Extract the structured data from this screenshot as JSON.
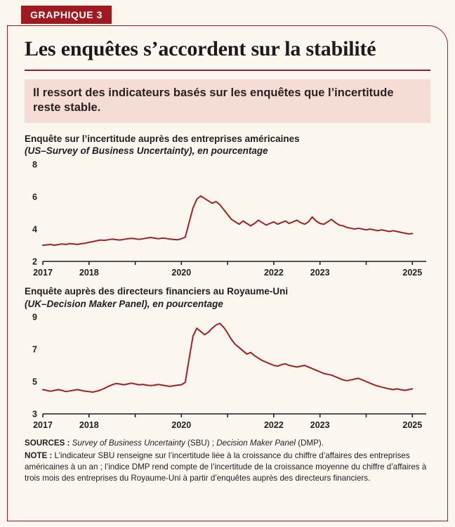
{
  "badge": "GRAPHIQUE 3",
  "title": "Les enquêtes s’accordent sur la stabilité",
  "intro": "Il ressort des indicateurs basés sur les enquêtes que l’incertitude reste stable.",
  "colors": {
    "accent": "#9e1b22",
    "line": "#a32220",
    "intro_background": "#f5dcd5",
    "page_background": "#fbf6ee",
    "text": "#221d1e"
  },
  "chart_data": [
    {
      "type": "line",
      "heading": "Enquête sur l’incertitude auprès des entreprises américaines",
      "subheading": "(US–Survey of Business Uncertainty), en pourcentage",
      "x0": 2017,
      "dx_years": 0.0833333,
      "xlim": [
        2017,
        2025.3
      ],
      "ylim": [
        2,
        8
      ],
      "yticks": [
        2,
        4,
        6,
        8
      ],
      "xtick_marks": [
        2017,
        2018,
        2019,
        2020,
        2021,
        2022,
        2023,
        2024,
        2025
      ],
      "xtick_labels": [
        [
          2017,
          "2017"
        ],
        [
          2018,
          "2018"
        ],
        [
          2020,
          "2020"
        ],
        [
          2022,
          "2022"
        ],
        [
          2023,
          "2023"
        ],
        [
          2025,
          "2025"
        ]
      ],
      "values": [
        3.0,
        3.02,
        3.05,
        3.0,
        3.04,
        3.08,
        3.05,
        3.1,
        3.08,
        3.05,
        3.1,
        3.12,
        3.18,
        3.22,
        3.28,
        3.32,
        3.3,
        3.34,
        3.38,
        3.35,
        3.32,
        3.36,
        3.4,
        3.42,
        3.4,
        3.36,
        3.4,
        3.44,
        3.48,
        3.44,
        3.4,
        3.44,
        3.42,
        3.38,
        3.36,
        3.34,
        3.4,
        3.5,
        4.4,
        5.3,
        5.85,
        6.05,
        5.9,
        5.75,
        5.6,
        5.7,
        5.5,
        5.2,
        4.9,
        4.6,
        4.45,
        4.3,
        4.5,
        4.35,
        4.2,
        4.35,
        4.55,
        4.4,
        4.25,
        4.35,
        4.45,
        4.3,
        4.4,
        4.5,
        4.35,
        4.45,
        4.55,
        4.4,
        4.3,
        4.45,
        4.75,
        4.5,
        4.35,
        4.3,
        4.45,
        4.6,
        4.4,
        4.25,
        4.2,
        4.1,
        4.05,
        4.0,
        4.05,
        4.0,
        3.95,
        4.0,
        3.95,
        3.9,
        3.95,
        3.9,
        3.85,
        3.9,
        3.85,
        3.8,
        3.75,
        3.7,
        3.72
      ]
    },
    {
      "type": "line",
      "heading": "Enquête auprès des directeurs financiers au Royaume-Uni",
      "subheading": "(UK–Decision Maker Panel), en pourcentage",
      "x0": 2017,
      "dx_years": 0.0833333,
      "xlim": [
        2017,
        2025.3
      ],
      "ylim": [
        3,
        9
      ],
      "yticks": [
        3,
        5,
        7,
        9
      ],
      "xtick_marks": [
        2017,
        2018,
        2019,
        2020,
        2021,
        2022,
        2023,
        2024,
        2025
      ],
      "xtick_labels": [
        [
          2017,
          "2017"
        ],
        [
          2018,
          "2018"
        ],
        [
          2020,
          "2020"
        ],
        [
          2022,
          "2022"
        ],
        [
          2023,
          "2023"
        ],
        [
          2025,
          "2025"
        ]
      ],
      "values": [
        4.5,
        4.45,
        4.4,
        4.45,
        4.5,
        4.45,
        4.38,
        4.42,
        4.46,
        4.5,
        4.45,
        4.4,
        4.38,
        4.35,
        4.4,
        4.48,
        4.58,
        4.7,
        4.8,
        4.88,
        4.85,
        4.8,
        4.85,
        4.9,
        4.85,
        4.8,
        4.82,
        4.78,
        4.75,
        4.78,
        4.82,
        4.78,
        4.74,
        4.7,
        4.74,
        4.78,
        4.8,
        4.95,
        6.4,
        7.8,
        8.3,
        8.1,
        7.9,
        8.05,
        8.3,
        8.5,
        8.6,
        8.35,
        8.0,
        7.6,
        7.3,
        7.1,
        6.9,
        6.7,
        6.8,
        6.6,
        6.45,
        6.3,
        6.2,
        6.1,
        6.0,
        5.95,
        6.05,
        6.1,
        6.0,
        5.95,
        5.9,
        5.95,
        6.0,
        5.9,
        5.8,
        5.7,
        5.6,
        5.5,
        5.45,
        5.4,
        5.3,
        5.2,
        5.1,
        5.05,
        5.1,
        5.15,
        5.2,
        5.1,
        5.0,
        4.9,
        4.8,
        4.72,
        4.66,
        4.6,
        4.55,
        4.5,
        4.55,
        4.5,
        4.45,
        4.5,
        4.55
      ]
    }
  ],
  "sources": {
    "label": "SOURCES : ",
    "italic1": "Survey of Business Uncertainty",
    "mid": " (SBU) ; ",
    "italic2": "Decision Maker Panel",
    "end": " (DMP)."
  },
  "note": {
    "label": "NOTE : ",
    "text": "L’indicateur SBU renseigne sur l’incertitude liée à la croissance du chiffre d’affaires des entreprises américaines à un an ; l’indice DMP rend compte de l’incertitude de la croissance moyenne du chiffre d’affaires à trois mois des entreprises du Royaume-Uni à partir d’enquêtes auprès des directeurs financiers."
  }
}
